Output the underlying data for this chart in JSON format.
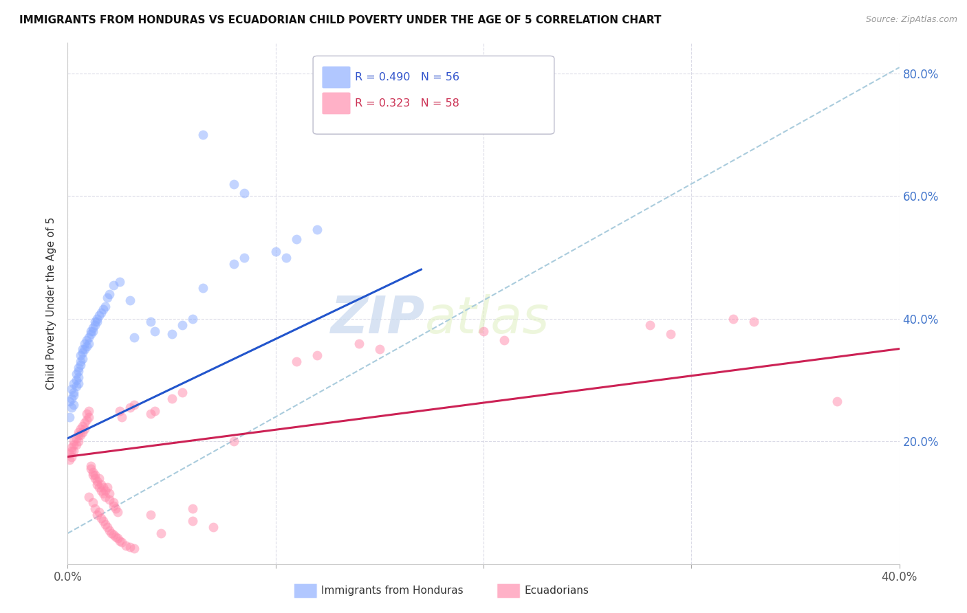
{
  "title": "IMMIGRANTS FROM HONDURAS VS ECUADORIAN CHILD POVERTY UNDER THE AGE OF 5 CORRELATION CHART",
  "source": "Source: ZipAtlas.com",
  "ylabel": "Child Poverty Under the Age of 5",
  "x_min": 0.0,
  "x_max": 0.4,
  "y_min": 0.0,
  "y_max": 0.85,
  "blue_color": "#88aaff",
  "pink_color": "#ff88aa",
  "blue_line_color": "#2255cc",
  "pink_line_color": "#cc2255",
  "dashed_line_color": "#aaccdd",
  "legend_blue_label": "Immigrants from Honduras",
  "legend_pink_label": "Ecuadorians",
  "legend_R_blue": "R = 0.490",
  "legend_N_blue": "N = 56",
  "legend_R_pink": "R = 0.323",
  "legend_N_pink": "N = 58",
  "watermark_zip": "ZIP",
  "watermark_atlas": "atlas",
  "blue_intercept": 0.205,
  "blue_slope": 1.62,
  "pink_intercept": 0.175,
  "pink_slope": 0.44,
  "dashed_intercept": 0.05,
  "dashed_slope": 1.9,
  "blue_scatter": [
    [
      0.001,
      0.265
    ],
    [
      0.001,
      0.24
    ],
    [
      0.002,
      0.27
    ],
    [
      0.002,
      0.255
    ],
    [
      0.002,
      0.285
    ],
    [
      0.003,
      0.295
    ],
    [
      0.003,
      0.275
    ],
    [
      0.003,
      0.28
    ],
    [
      0.003,
      0.26
    ],
    [
      0.004,
      0.31
    ],
    [
      0.004,
      0.29
    ],
    [
      0.004,
      0.3
    ],
    [
      0.005,
      0.32
    ],
    [
      0.005,
      0.305
    ],
    [
      0.005,
      0.315
    ],
    [
      0.005,
      0.295
    ],
    [
      0.006,
      0.33
    ],
    [
      0.006,
      0.34
    ],
    [
      0.006,
      0.325
    ],
    [
      0.007,
      0.35
    ],
    [
      0.007,
      0.335
    ],
    [
      0.007,
      0.345
    ],
    [
      0.008,
      0.36
    ],
    [
      0.008,
      0.35
    ],
    [
      0.009,
      0.365
    ],
    [
      0.009,
      0.355
    ],
    [
      0.01,
      0.37
    ],
    [
      0.01,
      0.36
    ],
    [
      0.011,
      0.375
    ],
    [
      0.011,
      0.38
    ],
    [
      0.012,
      0.385
    ],
    [
      0.012,
      0.38
    ],
    [
      0.013,
      0.39
    ],
    [
      0.013,
      0.395
    ],
    [
      0.014,
      0.395
    ],
    [
      0.014,
      0.4
    ],
    [
      0.015,
      0.405
    ],
    [
      0.016,
      0.41
    ],
    [
      0.017,
      0.415
    ],
    [
      0.018,
      0.42
    ],
    [
      0.019,
      0.435
    ],
    [
      0.02,
      0.44
    ],
    [
      0.022,
      0.455
    ],
    [
      0.025,
      0.46
    ],
    [
      0.03,
      0.43
    ],
    [
      0.032,
      0.37
    ],
    [
      0.04,
      0.395
    ],
    [
      0.042,
      0.38
    ],
    [
      0.05,
      0.375
    ],
    [
      0.055,
      0.39
    ],
    [
      0.06,
      0.4
    ],
    [
      0.065,
      0.45
    ],
    [
      0.08,
      0.49
    ],
    [
      0.085,
      0.5
    ],
    [
      0.11,
      0.53
    ],
    [
      0.12,
      0.545
    ]
  ],
  "blue_outliers": [
    [
      0.065,
      0.7
    ],
    [
      0.08,
      0.62
    ],
    [
      0.085,
      0.605
    ],
    [
      0.1,
      0.51
    ],
    [
      0.105,
      0.5
    ]
  ],
  "pink_scatter": [
    [
      0.001,
      0.18
    ],
    [
      0.001,
      0.17
    ],
    [
      0.002,
      0.185
    ],
    [
      0.002,
      0.175
    ],
    [
      0.002,
      0.19
    ],
    [
      0.003,
      0.2
    ],
    [
      0.003,
      0.185
    ],
    [
      0.003,
      0.195
    ],
    [
      0.004,
      0.205
    ],
    [
      0.004,
      0.195
    ],
    [
      0.005,
      0.21
    ],
    [
      0.005,
      0.2
    ],
    [
      0.005,
      0.215
    ],
    [
      0.006,
      0.22
    ],
    [
      0.006,
      0.21
    ],
    [
      0.007,
      0.225
    ],
    [
      0.007,
      0.215
    ],
    [
      0.008,
      0.23
    ],
    [
      0.008,
      0.22
    ],
    [
      0.009,
      0.235
    ],
    [
      0.009,
      0.245
    ],
    [
      0.01,
      0.24
    ],
    [
      0.01,
      0.25
    ],
    [
      0.011,
      0.16
    ],
    [
      0.011,
      0.155
    ],
    [
      0.012,
      0.145
    ],
    [
      0.012,
      0.15
    ],
    [
      0.013,
      0.14
    ],
    [
      0.013,
      0.145
    ],
    [
      0.014,
      0.135
    ],
    [
      0.014,
      0.13
    ],
    [
      0.015,
      0.14
    ],
    [
      0.015,
      0.125
    ],
    [
      0.016,
      0.13
    ],
    [
      0.016,
      0.12
    ],
    [
      0.017,
      0.115
    ],
    [
      0.017,
      0.125
    ],
    [
      0.018,
      0.11
    ],
    [
      0.018,
      0.12
    ],
    [
      0.019,
      0.125
    ],
    [
      0.02,
      0.105
    ],
    [
      0.02,
      0.115
    ],
    [
      0.022,
      0.1
    ],
    [
      0.022,
      0.095
    ],
    [
      0.023,
      0.09
    ],
    [
      0.024,
      0.085
    ],
    [
      0.025,
      0.25
    ],
    [
      0.026,
      0.24
    ],
    [
      0.03,
      0.255
    ],
    [
      0.032,
      0.26
    ],
    [
      0.04,
      0.245
    ],
    [
      0.042,
      0.25
    ],
    [
      0.05,
      0.27
    ],
    [
      0.055,
      0.28
    ],
    [
      0.06,
      0.07
    ],
    [
      0.08,
      0.2
    ],
    [
      0.11,
      0.33
    ],
    [
      0.12,
      0.34
    ],
    [
      0.14,
      0.36
    ],
    [
      0.15,
      0.35
    ],
    [
      0.2,
      0.38
    ],
    [
      0.21,
      0.365
    ],
    [
      0.28,
      0.39
    ],
    [
      0.29,
      0.375
    ],
    [
      0.32,
      0.4
    ],
    [
      0.33,
      0.395
    ],
    [
      0.37,
      0.265
    ]
  ],
  "pink_low": [
    [
      0.01,
      0.11
    ],
    [
      0.012,
      0.1
    ],
    [
      0.013,
      0.09
    ],
    [
      0.014,
      0.08
    ],
    [
      0.015,
      0.085
    ],
    [
      0.016,
      0.075
    ],
    [
      0.017,
      0.07
    ],
    [
      0.018,
      0.065
    ],
    [
      0.019,
      0.06
    ],
    [
      0.02,
      0.055
    ],
    [
      0.021,
      0.05
    ],
    [
      0.022,
      0.048
    ],
    [
      0.023,
      0.045
    ],
    [
      0.024,
      0.042
    ],
    [
      0.025,
      0.038
    ],
    [
      0.026,
      0.035
    ],
    [
      0.028,
      0.03
    ],
    [
      0.03,
      0.028
    ],
    [
      0.032,
      0.025
    ],
    [
      0.04,
      0.08
    ],
    [
      0.045,
      0.05
    ],
    [
      0.06,
      0.09
    ],
    [
      0.07,
      0.06
    ]
  ]
}
